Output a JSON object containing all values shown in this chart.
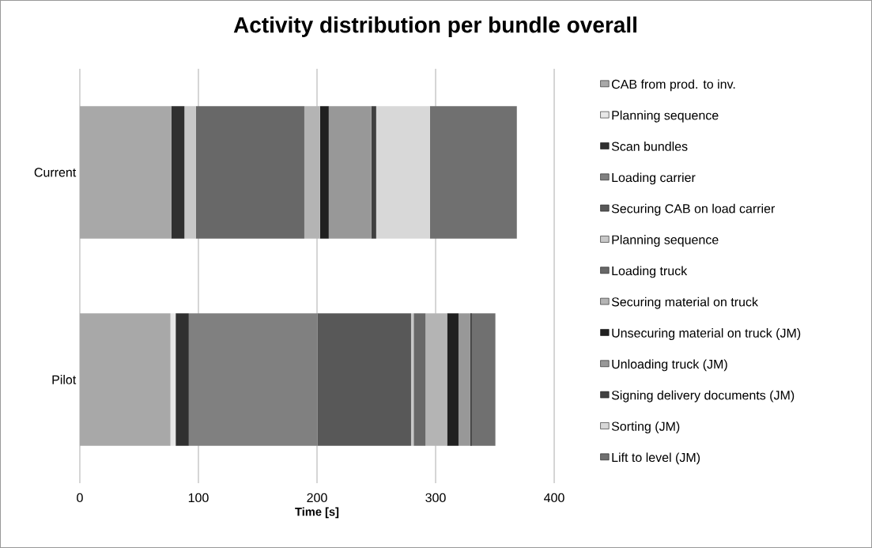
{
  "chart_data": {
    "type": "bar",
    "title": "Activity distribution per bundle overall",
    "xlabel": "Time [s]",
    "categories": [
      "Current",
      "Pilot"
    ],
    "orientation": "horizontal",
    "stacked": true,
    "xlim": [
      0,
      400
    ],
    "xticks": [
      0,
      100,
      200,
      300,
      400
    ],
    "grid": "x",
    "legend": "right",
    "series": [
      {
        "name": "CAB from prod. to inv.",
        "color": "#a8a8a8",
        "values": [
          77.1,
          76.4
        ]
      },
      {
        "name": "Planning sequence",
        "color": "#e8e8e8",
        "values": [
          0,
          4.4
        ]
      },
      {
        "name": "Scan bundles",
        "color": "#303030",
        "values": [
          11.1,
          11.1
        ]
      },
      {
        "name": "Loading carrier",
        "color": "#808080",
        "values": [
          0,
          108.5
        ]
      },
      {
        "name": "Securing CAB on load carrier",
        "color": "#585858",
        "values": [
          0,
          78.9
        ]
      },
      {
        "name": "Planning sequence",
        "color": "#c8c8c8",
        "values": [
          9.6,
          2.2
        ]
      },
      {
        "name": "Loading truck",
        "color": "#686868",
        "values": [
          91.5,
          10
        ]
      },
      {
        "name": "Securing material on truck",
        "color": "#b4b4b4",
        "values": [
          13.3,
          18.2
        ]
      },
      {
        "name": "Unsecuring material on truck (JM)",
        "color": "#202020",
        "values": [
          7.3,
          9.6
        ]
      },
      {
        "name": "Unloading truck (JM)",
        "color": "#989898",
        "values": [
          36,
          10
        ]
      },
      {
        "name": "Signing delivery documents (JM)",
        "color": "#404040",
        "values": [
          4,
          1.3
        ]
      },
      {
        "name": "Sorting (JM)",
        "color": "#d8d8d8",
        "values": [
          45.3,
          0
        ]
      },
      {
        "name": "Lift to level (JM)",
        "color": "#707070",
        "values": [
          73.3,
          19.8
        ]
      }
    ]
  }
}
